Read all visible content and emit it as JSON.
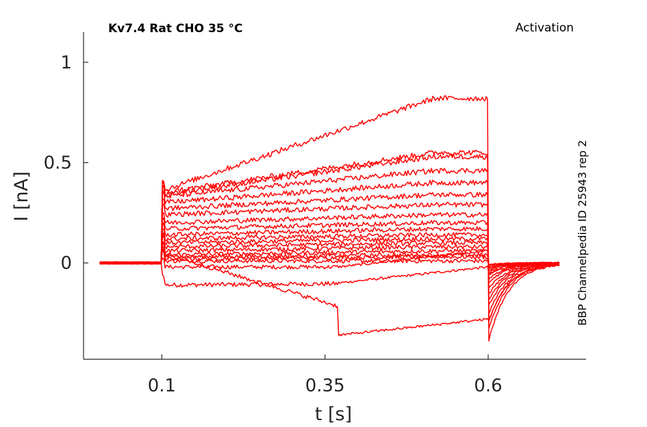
{
  "chart_data": {
    "type": "line",
    "title": "Kv7.4  Rat  CHO  35 °C",
    "corner_label": "Activation",
    "side_label": "BBP Channelpedia ID 25943 rep 2",
    "xlabel": "t [s]",
    "ylabel": "I [nA]",
    "xlim": [
      -0.02,
      0.75
    ],
    "ylim": [
      -0.48,
      1.15
    ],
    "x_ticks": [
      0.1,
      0.35,
      0.6
    ],
    "x_tick_labels": [
      "0.1",
      "0.35",
      "0.6"
    ],
    "y_ticks": [
      0,
      0.5,
      1
    ],
    "y_tick_labels": [
      "0",
      "0.5",
      "1"
    ],
    "grid": false,
    "line_color": "#ff0000",
    "protocol": {
      "step_on": 0.1,
      "step_off": 0.6,
      "t_start": 0.005,
      "t_end": 0.71
    },
    "series": [
      {
        "steady": -0.11,
        "plateau": -0.1,
        "tail": -0.06
      },
      {
        "steady": -0.02,
        "plateau": -0.02,
        "tail": -0.01
      },
      {
        "steady": 0.01,
        "plateau": 0.01,
        "tail": -0.01
      },
      {
        "steady": 0.02,
        "plateau": 0.03,
        "tail": -0.01
      },
      {
        "steady": 0.03,
        "plateau": 0.04,
        "tail": -0.02
      },
      {
        "steady": 0.04,
        "plateau": 0.06,
        "tail": -0.02
      },
      {
        "steady": 0.06,
        "plateau": 0.08,
        "tail": -0.03
      },
      {
        "steady": 0.08,
        "plateau": 0.1,
        "tail": -0.04
      },
      {
        "steady": 0.1,
        "plateau": 0.12,
        "tail": -0.05
      },
      {
        "steady": 0.12,
        "plateau": 0.14,
        "tail": -0.06
      },
      {
        "steady": 0.14,
        "plateau": 0.17,
        "tail": -0.08
      },
      {
        "steady": 0.17,
        "plateau": 0.2,
        "tail": -0.1
      },
      {
        "steady": 0.2,
        "plateau": 0.24,
        "tail": -0.13
      },
      {
        "steady": 0.24,
        "plateau": 0.29,
        "tail": -0.16
      },
      {
        "steady": 0.27,
        "plateau": 0.34,
        "tail": -0.19
      },
      {
        "steady": 0.3,
        "plateau": 0.4,
        "tail": -0.22
      },
      {
        "steady": 0.33,
        "plateau": 0.46,
        "tail": -0.26
      },
      {
        "steady": 0.34,
        "plateau": 0.53,
        "tail": -0.3
      },
      {
        "steady": 0.35,
        "plateau": 0.55,
        "tail": -0.34
      },
      {
        "steady": 0.36,
        "plateau": 0.82,
        "tail": -0.4
      },
      {
        "steady": 0.05,
        "plateau": -0.36,
        "tail": -0.3
      }
    ]
  }
}
